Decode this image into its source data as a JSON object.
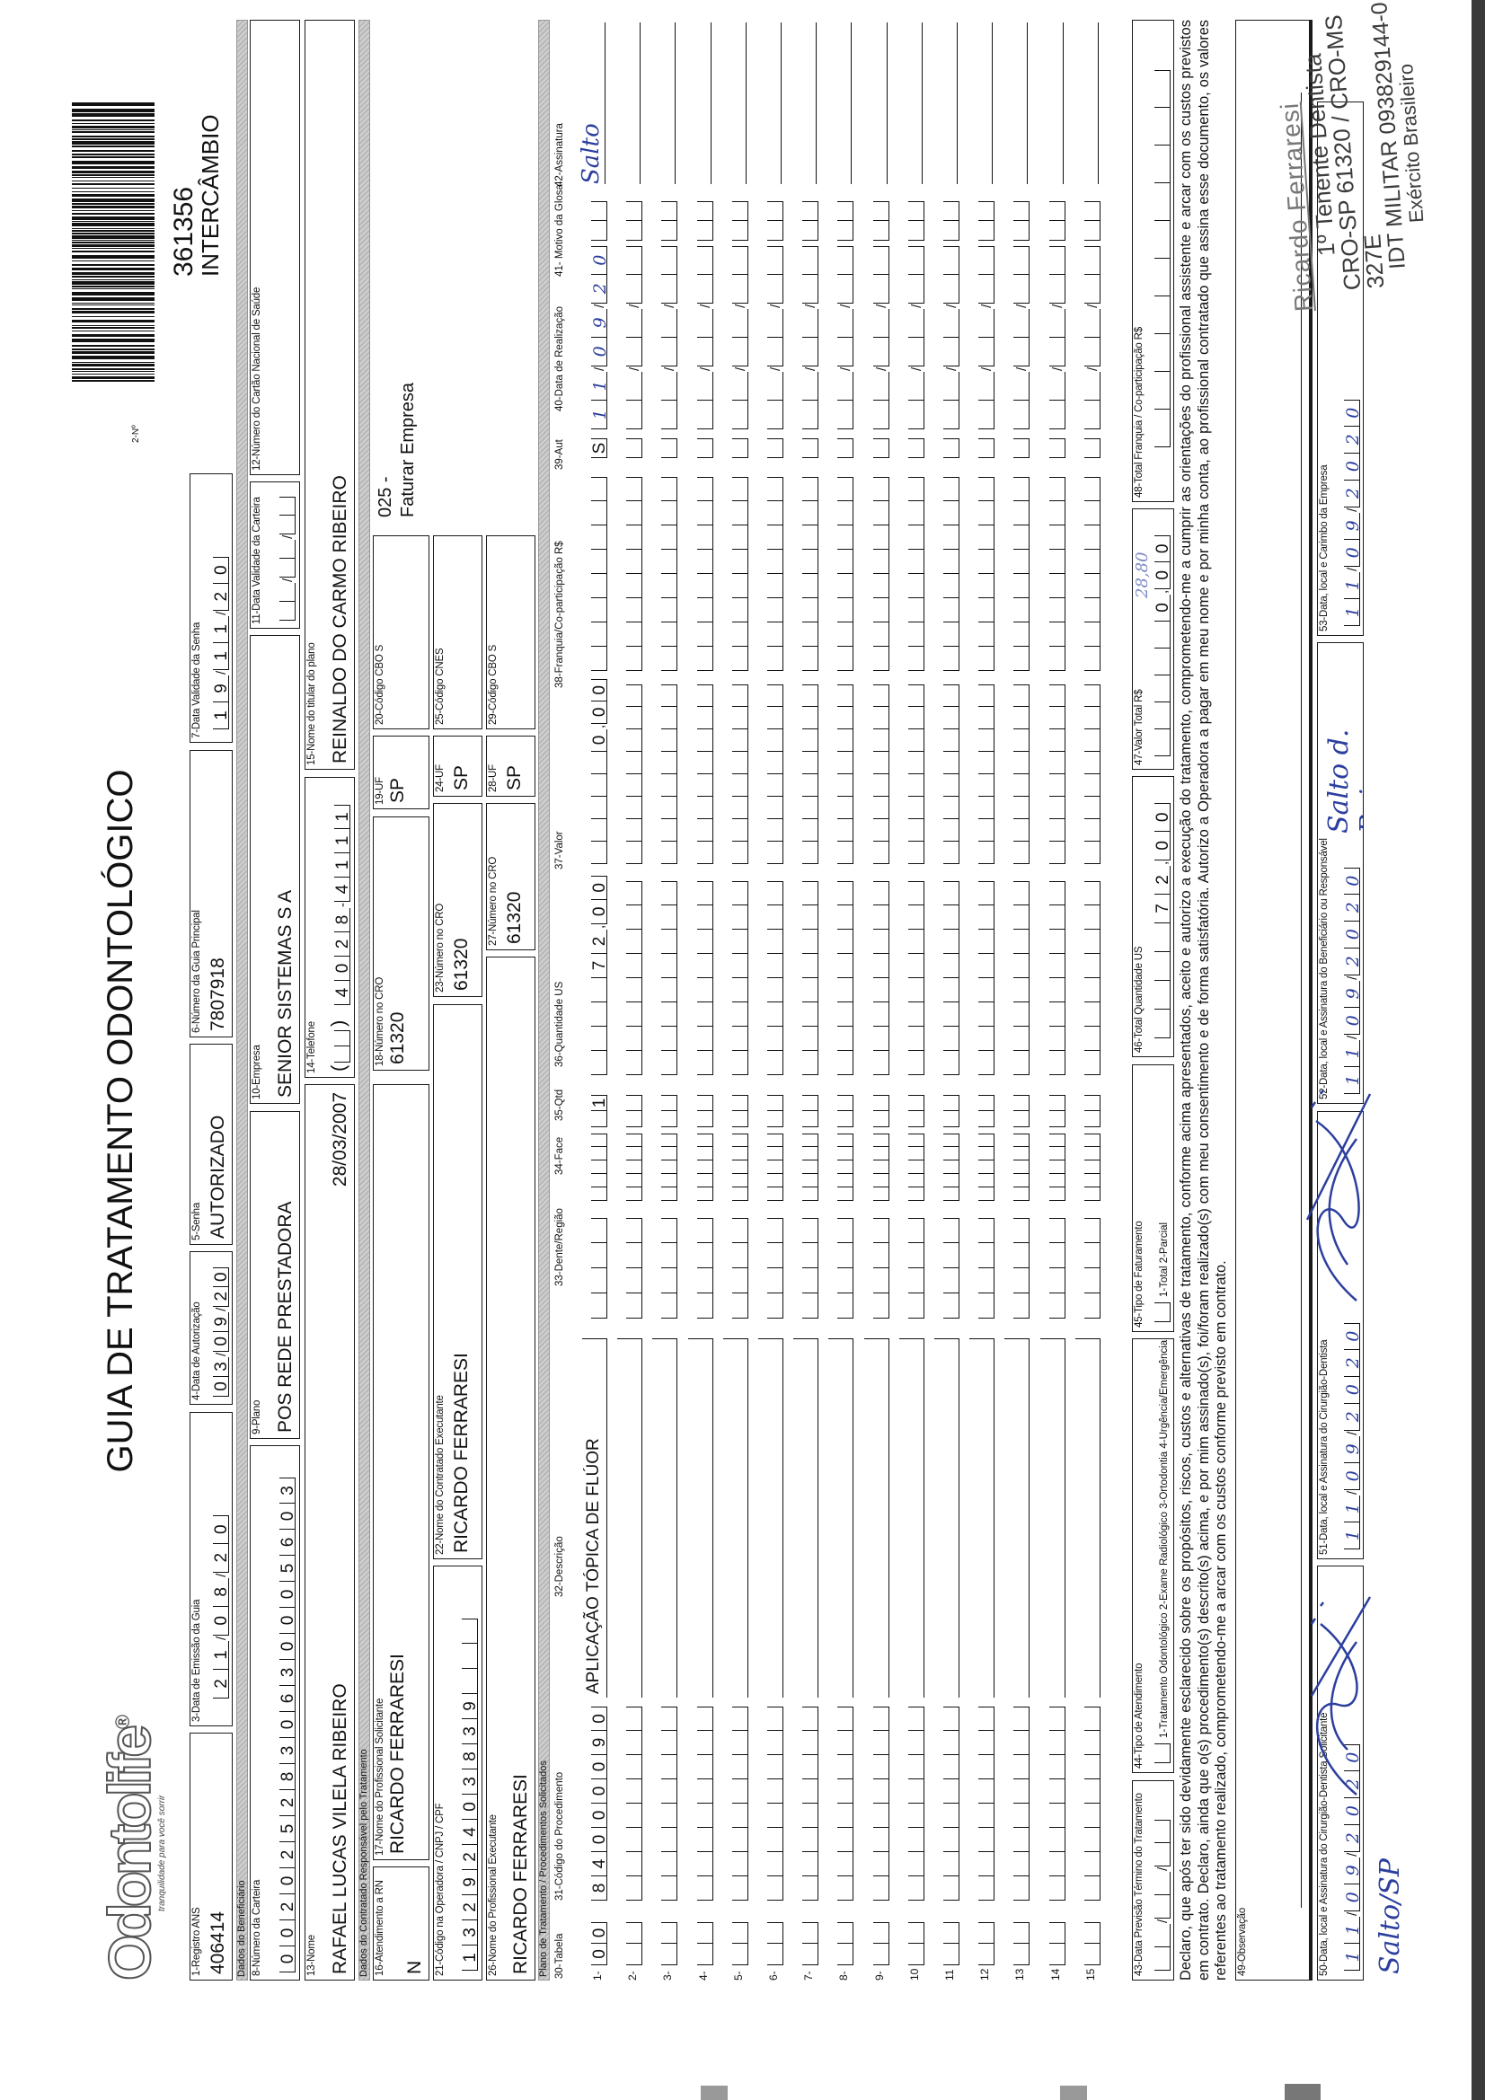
{
  "header": {
    "logo": "Odontolife",
    "logo_mark": "®",
    "tagline": "tranquilidade para você sorrir",
    "title": "GUIA DE TRATAMENTO ODONTOLÓGICO",
    "guia_no_label": "2-Nº",
    "guia_no": "361356",
    "guia_tipo": "INTERCÂMBIO"
  },
  "fields": {
    "f1": {
      "label": "1-Registro ANS",
      "value": "406414"
    },
    "f3": {
      "label": "3-Data de Emissão da Guia",
      "value": "21/08/20"
    },
    "f4": {
      "label": "4-Data de Autorização",
      "value": "03/09/20"
    },
    "f5": {
      "label": "5-Senha",
      "value": "AUTORIZADO"
    },
    "f6": {
      "label": "6-Número da Guia Principal",
      "value": "7807918"
    },
    "f7": {
      "label": "7-Data Validade da Senha",
      "value": "19/11/20"
    },
    "f8": {
      "label": "8-Número da Carteira",
      "value": "0020252830630005603"
    },
    "f9": {
      "label": "9-Plano",
      "value": "POS REDE PRESTADORA"
    },
    "f10": {
      "label": "10-Empresa",
      "value": "SENIOR SISTEMAS S A"
    },
    "f11": {
      "label": "11-Data Validade da Carteira",
      "value": "  /  /  "
    },
    "f12": {
      "label": "12-Número do Cartão Nacional de Saúde",
      "value": ""
    },
    "f13": {
      "label": "13-Nome",
      "value": "RAFAEL LUCAS VILELA RIBEIRO",
      "birth": "28/03/2007"
    },
    "f14": {
      "label": "14-Telefone",
      "area": "  ",
      "value": "4028-4111"
    },
    "f15": {
      "label": "15-Nome do titular do plano",
      "value": "REINALDO DO CARMO RIBEIRO"
    },
    "f16": {
      "label": "16-Atendimento a RN",
      "value": "N"
    },
    "f17": {
      "label": "17-Nome do Profissional Solicitante",
      "value": "RICARDO FERRARESI"
    },
    "f18": {
      "label": "18-Número no CRO",
      "value": "61320"
    },
    "f19": {
      "label": "19-UF",
      "value": "SP"
    },
    "f20": {
      "label": "20-Código CBO S",
      "value": ""
    },
    "faturamento_code": "025 -",
    "faturamento_text": "Faturar Empresa",
    "f21": {
      "label": "21-Código na Operadora / CNPJ / CPF",
      "value": "13292403839"
    },
    "f22": {
      "label": "22-Nome do Contratado Executante",
      "value": "RICARDO FERRARESI"
    },
    "f23": {
      "label": "23-Número no CRO",
      "value": "61320"
    },
    "f24": {
      "label": "24-UF",
      "value": "SP"
    },
    "f25": {
      "label": "25-Código CNES",
      "value": ""
    },
    "f26": {
      "label": "26-Nome do Profissional Executante",
      "value": "RICARDO FERRARESI"
    },
    "f27": {
      "label": "27-Número no CRO",
      "value": "61320"
    },
    "f28": {
      "label": "28-UF",
      "value": "SP"
    },
    "f29": {
      "label": "29-Código CBO S",
      "value": ""
    }
  },
  "sections": {
    "beneficiario": "Dados do Beneficiário",
    "contratado": "Dados do Contratado Responsável pelo Tratamento",
    "plano": "Plano de Tratamento / Procedimentos Solicitados"
  },
  "plan": {
    "headers": {
      "c30": "30-Tabela",
      "c31": "31-Código do Procedimento",
      "c32": "32-Descrição",
      "c33": "33-Dente/Região",
      "c34": "34-Face",
      "c35": "35-Qtd",
      "c36": "36-Quantidade US",
      "c37": "37-Valor",
      "c38": "38-Franquia/Co-participação R$",
      "c39": "39-Aut",
      "c40": "40-Data de Realização",
      "c41": "41- Motivo da Glosa",
      "c42": "42-Assinatura"
    },
    "rows": [
      {
        "n": "1-",
        "tabela": "00",
        "codigo": "84000090",
        "descricao": "APLICAÇÃO TÓPICA DE FLÚOR",
        "dente": "",
        "face": "",
        "qtd": "1",
        "qtd_us": "72,00",
        "valor": "0,00",
        "franquia": "",
        "aut": "S",
        "data": "11/09/20",
        "glosa": "",
        "assinatura": "Salto"
      },
      {
        "n": "2-"
      },
      {
        "n": "3-"
      },
      {
        "n": "4-"
      },
      {
        "n": "5-"
      },
      {
        "n": "6-"
      },
      {
        "n": "7-"
      },
      {
        "n": "8-"
      },
      {
        "n": "9-"
      },
      {
        "n": "10"
      },
      {
        "n": "11"
      },
      {
        "n": "12"
      },
      {
        "n": "13"
      },
      {
        "n": "14"
      },
      {
        "n": "15"
      }
    ]
  },
  "totals": {
    "f43": {
      "label": "43-Data Previsão Término do Tratamento",
      "value": "  /  /  "
    },
    "f44": {
      "label": "44-Tipo de Atendimento",
      "options": "1-Tratamento Odontológico  2-Exame Radiológico  3-Ortodontia  4-Urgência/Emergência",
      "value": ""
    },
    "f45": {
      "label": "45-Tipo de Faturamento",
      "options": "1-Total  2-Parcial",
      "value": ""
    },
    "f46": {
      "label": "46-Total Quantidade US",
      "value": "72,00"
    },
    "f47": {
      "label": "47-Valor Total R$",
      "value": "0,00",
      "handwritten": "28,80"
    },
    "f48": {
      "label": "48-Total Franquia / Co-participação R$",
      "value": ""
    }
  },
  "declaration": "Declaro, que após ter sido devidamente esclarecido sobre os propósitos, riscos, custos e alternativas de tratamento, conforme acima apresentados, aceito e autorizo a execução do tratamento, comprometendo-me a cumprir as orientações do profissional assistente e arcar com os custos previstos em contrato. Declaro, ainda que o(s) procedimento(s) descrito(s) acima, e por mim assinado(s), foi/foram realizado(s) com meu consentimento e de forma satisfatória. Autorizo a Operadora a pagar em meu nome e por minha conta, ao profissional contratado que assina esse documento, os valores referentes ao tratamento realizado, comprometendo-me a arcar com os custos conforme previsto em contrato.",
  "observacao": {
    "label": "49-Observação",
    "value": ""
  },
  "signatures": {
    "f50": {
      "label": "50-Data, local e Assinatura do Cirurgião-Dentista Solicitante",
      "date": "11/09/2020"
    },
    "f51": {
      "label": "51-Data, local e Assinatura do Cirurgião-Dentista",
      "date": "11/09/2020"
    },
    "f52": {
      "label": "52-Data, local e Assinatura do Beneficiário ou Responsável",
      "date": "11/09/2020",
      "signature": "Salto d. Reino"
    },
    "f53": {
      "label": "53-Data, local e Carimbo da Empresa",
      "date": "11/09/2020"
    },
    "location": "Salto/SP"
  },
  "stamp": {
    "name": "Ricardo Ferraresi",
    "line1": "1º Tenente Dentista",
    "line2": "CRO-SP 61320 / CRO-MS 327E",
    "line3": "IDT MILITAR 093829144-0",
    "line4": "Exército Brasileiro"
  },
  "colors": {
    "ink": "#111111",
    "handwriting": "#2c3f9e",
    "section_bar": "#c4c4c4"
  }
}
